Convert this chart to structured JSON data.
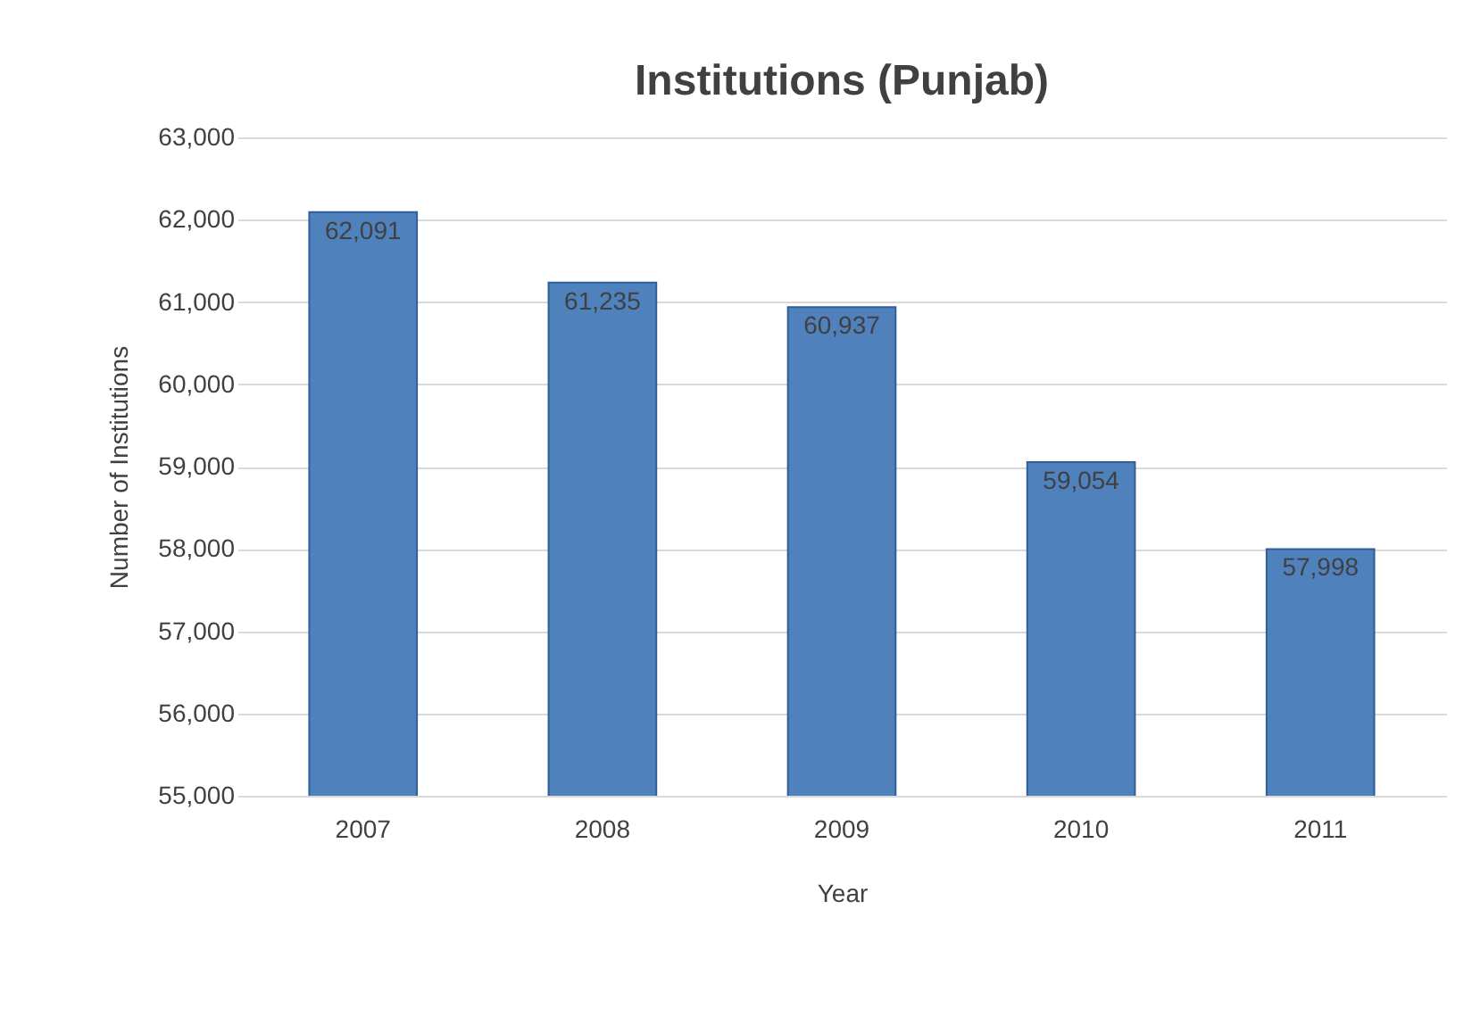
{
  "chart_data": {
    "type": "bar",
    "title": "Institutions (Punjab)",
    "xlabel": "Year",
    "ylabel": "Number of Institutions",
    "categories": [
      "2007",
      "2008",
      "2009",
      "2010",
      "2011"
    ],
    "values": [
      62091,
      61235,
      60937,
      59054,
      57998
    ],
    "value_labels": [
      "62,091",
      "61,235",
      "60,937",
      "59,054",
      "57,998"
    ],
    "color": "#4f81bd",
    "ylim": [
      55000,
      63000
    ],
    "yticks": [
      {
        "value": 55000,
        "label": "55,000"
      },
      {
        "value": 56000,
        "label": "56,000"
      },
      {
        "value": 57000,
        "label": "57,000"
      },
      {
        "value": 58000,
        "label": "58,000"
      },
      {
        "value": 59000,
        "label": "59,000"
      },
      {
        "value": 60000,
        "label": "60,000"
      },
      {
        "value": 61000,
        "label": "61,000"
      },
      {
        "value": 62000,
        "label": "62,000"
      },
      {
        "value": 63000,
        "label": "63,000"
      }
    ],
    "grid": "y"
  }
}
